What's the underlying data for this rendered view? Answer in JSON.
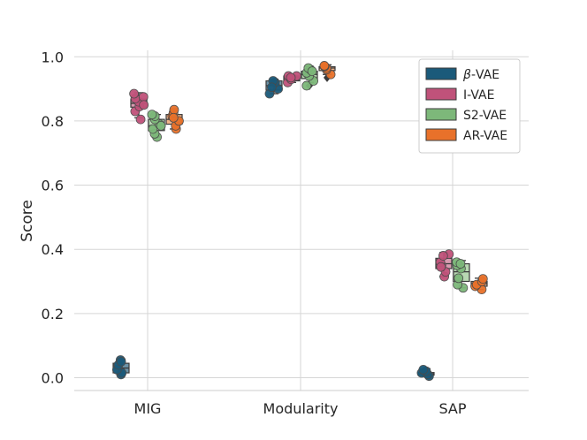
{
  "chart_data": {
    "type": "box",
    "title": "",
    "xlabel": "",
    "ylabel": "Score",
    "ylim": [
      -0.04,
      1.02
    ],
    "yticks": [
      0.0,
      0.2,
      0.4,
      0.6,
      0.8,
      1.0
    ],
    "ytick_labels": [
      "0.0",
      "0.2",
      "0.4",
      "0.6",
      "0.8",
      "1.0"
    ],
    "categories": [
      "MIG",
      "Modularity",
      "SAP"
    ],
    "grid": true,
    "legend_position": "top-right",
    "series": [
      {
        "name": "β-VAE",
        "legend_prefix": "β",
        "legend_suffix": "-VAE",
        "color": "#1b5a7a",
        "box_color": "#6b93a8",
        "boxes": [
          {
            "category": "MIG",
            "q1": 0.015,
            "median": 0.03,
            "q3": 0.045,
            "whisker_low": 0.01,
            "whisker_high": 0.058,
            "outliers": [],
            "points": [
              0.01,
              0.015,
              0.025,
              0.04,
              0.055,
              0.05
            ]
          },
          {
            "category": "Modularity",
            "q1": 0.896,
            "median": 0.91,
            "q3": 0.925,
            "whisker_low": 0.885,
            "whisker_high": 0.93,
            "outliers": [],
            "points": [
              0.885,
              0.9,
              0.92,
              0.925,
              0.905
            ]
          },
          {
            "category": "SAP",
            "q1": 0.008,
            "median": 0.012,
            "q3": 0.016,
            "whisker_low": 0.005,
            "whisker_high": 0.028,
            "outliers": [],
            "points": [
              0.005,
              0.01,
              0.015,
              0.02,
              0.025
            ]
          }
        ]
      },
      {
        "name": "I-VAE",
        "color": "#c0527a",
        "box_color": "#d99ab0",
        "boxes": [
          {
            "category": "MIG",
            "q1": 0.843,
            "median": 0.855,
            "q3": 0.868,
            "whisker_low": 0.81,
            "whisker_high": 0.888,
            "outliers": [],
            "points": [
              0.805,
              0.83,
              0.845,
              0.86,
              0.87,
              0.885,
              0.875,
              0.85
            ]
          },
          {
            "category": "Modularity",
            "q1": 0.925,
            "median": 0.935,
            "q3": 0.94,
            "whisker_low": 0.92,
            "whisker_high": 0.942,
            "outliers": [],
            "points": [
              0.92,
              0.93,
              0.94,
              0.94,
              0.935
            ]
          },
          {
            "category": "SAP",
            "q1": 0.34,
            "median": 0.355,
            "q3": 0.372,
            "whisker_low": 0.315,
            "whisker_high": 0.39,
            "outliers": [],
            "points": [
              0.315,
              0.33,
              0.35,
              0.36,
              0.385,
              0.38,
              0.345
            ]
          }
        ]
      },
      {
        "name": "S2-VAE",
        "color": "#7db87a",
        "box_color": "#b8d8b2",
        "boxes": [
          {
            "category": "MIG",
            "q1": 0.77,
            "median": 0.785,
            "q3": 0.805,
            "whisker_low": 0.75,
            "whisker_high": 0.82,
            "outliers": [],
            "points": [
              0.75,
              0.76,
              0.775,
              0.79,
              0.805,
              0.815,
              0.82,
              0.785
            ]
          },
          {
            "category": "Modularity",
            "q1": 0.932,
            "median": 0.945,
            "q3": 0.955,
            "whisker_low": 0.92,
            "whisker_high": 0.97,
            "outliers": [
              0.91
            ],
            "points": [
              0.91,
              0.925,
              0.94,
              0.95,
              0.96,
              0.965,
              0.955
            ]
          },
          {
            "category": "SAP",
            "q1": 0.3,
            "median": 0.33,
            "q3": 0.355,
            "whisker_low": 0.28,
            "whisker_high": 0.365,
            "outliers": [],
            "points": [
              0.28,
              0.29,
              0.31,
              0.34,
              0.35,
              0.36,
              0.355
            ]
          }
        ]
      },
      {
        "name": "AR-VAE",
        "color": "#e8712a",
        "box_color": "#f2b48a",
        "boxes": [
          {
            "category": "MIG",
            "q1": 0.79,
            "median": 0.805,
            "q3": 0.82,
            "whisker_low": 0.775,
            "whisker_high": 0.838,
            "outliers": [],
            "points": [
              0.775,
              0.785,
              0.8,
              0.815,
              0.825,
              0.835,
              0.81
            ]
          },
          {
            "category": "Modularity",
            "q1": 0.957,
            "median": 0.965,
            "q3": 0.969,
            "whisker_low": 0.945,
            "whisker_high": 0.975,
            "outliers": [
              0.935
            ],
            "points": [
              0.945,
              0.96,
              0.965,
              0.97,
              0.972
            ]
          },
          {
            "category": "SAP",
            "q1": 0.285,
            "median": 0.293,
            "q3": 0.3,
            "whisker_low": 0.275,
            "whisker_high": 0.31,
            "outliers": [],
            "points": [
              0.275,
              0.285,
              0.29,
              0.3,
              0.308
            ]
          }
        ]
      }
    ]
  }
}
